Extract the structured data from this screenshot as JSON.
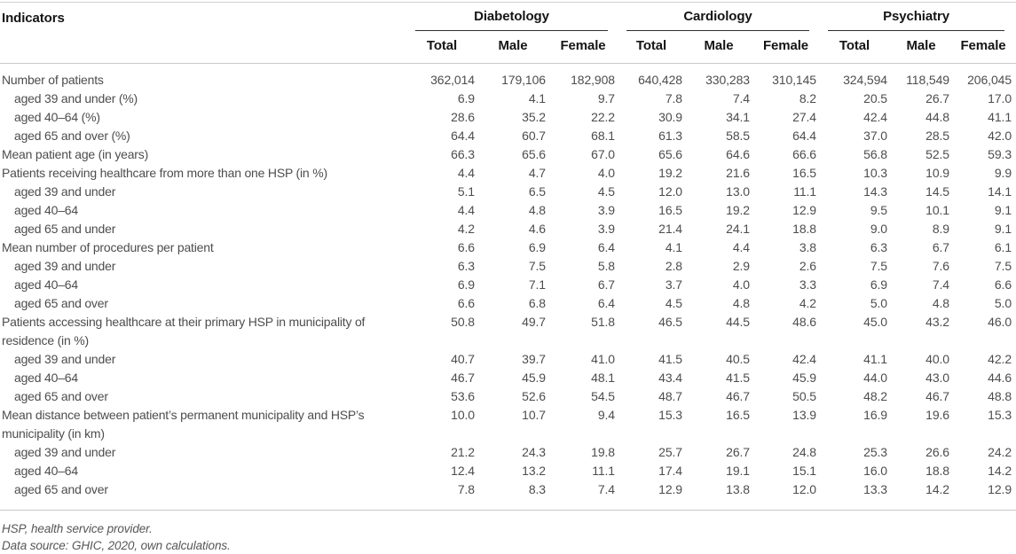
{
  "table": {
    "title_col": "Indicators",
    "groups": [
      {
        "label": "Diabetology",
        "cols": [
          "Total",
          "Male",
          "Female"
        ]
      },
      {
        "label": "Cardiology",
        "cols": [
          "Total",
          "Male",
          "Female"
        ]
      },
      {
        "label": "Psychiatry",
        "cols": [
          "Total",
          "Male",
          "Female"
        ]
      }
    ],
    "rows": [
      {
        "label": "Number of patients",
        "indent": false,
        "values": [
          "362,014",
          "179,106",
          "182,908",
          "640,428",
          "330,283",
          "310,145",
          "324,594",
          "118,549",
          "206,045"
        ]
      },
      {
        "label": "aged 39 and under (%)",
        "indent": true,
        "values": [
          "6.9",
          "4.1",
          "9.7",
          "7.8",
          "7.4",
          "8.2",
          "20.5",
          "26.7",
          "17.0"
        ]
      },
      {
        "label": "aged 40–64 (%)",
        "indent": true,
        "values": [
          "28.6",
          "35.2",
          "22.2",
          "30.9",
          "34.1",
          "27.4",
          "42.4",
          "44.8",
          "41.1"
        ]
      },
      {
        "label": "aged 65 and over (%)",
        "indent": true,
        "values": [
          "64.4",
          "60.7",
          "68.1",
          "61.3",
          "58.5",
          "64.4",
          "37.0",
          "28.5",
          "42.0"
        ]
      },
      {
        "label": "Mean patient age (in years)",
        "indent": false,
        "values": [
          "66.3",
          "65.6",
          "67.0",
          "65.6",
          "64.6",
          "66.6",
          "56.8",
          "52.5",
          "59.3"
        ]
      },
      {
        "label": "Patients receiving healthcare from more than one HSP (in %)",
        "indent": false,
        "values": [
          "4.4",
          "4.7",
          "4.0",
          "19.2",
          "21.6",
          "16.5",
          "10.3",
          "10.9",
          "9.9"
        ]
      },
      {
        "label": "aged 39 and under",
        "indent": true,
        "values": [
          "5.1",
          "6.5",
          "4.5",
          "12.0",
          "13.0",
          "11.1",
          "14.3",
          "14.5",
          "14.1"
        ]
      },
      {
        "label": "aged 40–64",
        "indent": true,
        "values": [
          "4.4",
          "4.8",
          "3.9",
          "16.5",
          "19.2",
          "12.9",
          "9.5",
          "10.1",
          "9.1"
        ]
      },
      {
        "label": "aged 65 and under",
        "indent": true,
        "values": [
          "4.2",
          "4.6",
          "3.9",
          "21.4",
          "24.1",
          "18.8",
          "9.0",
          "8.9",
          "9.1"
        ]
      },
      {
        "label": "Mean number of procedures per patient",
        "indent": false,
        "values": [
          "6.6",
          "6.9",
          "6.4",
          "4.1",
          "4.4",
          "3.8",
          "6.3",
          "6.7",
          "6.1"
        ]
      },
      {
        "label": "aged 39 and under",
        "indent": true,
        "values": [
          "6.3",
          "7.5",
          "5.8",
          "2.8",
          "2.9",
          "2.6",
          "7.5",
          "7.6",
          "7.5"
        ]
      },
      {
        "label": "aged 40–64",
        "indent": true,
        "values": [
          "6.9",
          "7.1",
          "6.7",
          "3.7",
          "4.0",
          "3.3",
          "6.9",
          "7.4",
          "6.6"
        ]
      },
      {
        "label": "aged 65 and over",
        "indent": true,
        "values": [
          "6.6",
          "6.8",
          "6.4",
          "4.5",
          "4.8",
          "4.2",
          "5.0",
          "4.8",
          "5.0"
        ]
      },
      {
        "label": "Patients accessing healthcare at their primary HSP in municipality of residence (in %)",
        "indent": false,
        "values": [
          "50.8",
          "49.7",
          "51.8",
          "46.5",
          "44.5",
          "48.6",
          "45.0",
          "43.2",
          "46.0"
        ]
      },
      {
        "label": "aged 39 and under",
        "indent": true,
        "values": [
          "40.7",
          "39.7",
          "41.0",
          "41.5",
          "40.5",
          "42.4",
          "41.1",
          "40.0",
          "42.2"
        ]
      },
      {
        "label": "aged 40–64",
        "indent": true,
        "values": [
          "46.7",
          "45.9",
          "48.1",
          "43.4",
          "41.5",
          "45.9",
          "44.0",
          "43.0",
          "44.6"
        ]
      },
      {
        "label": "aged 65 and over",
        "indent": true,
        "values": [
          "53.6",
          "52.6",
          "54.5",
          "48.7",
          "46.7",
          "50.5",
          "48.2",
          "46.7",
          "48.8"
        ]
      },
      {
        "label": "Mean distance between patient’s permanent municipality and HSP’s municipality (in km)",
        "indent": false,
        "values": [
          "10.0",
          "10.7",
          "9.4",
          "15.3",
          "16.5",
          "13.9",
          "16.9",
          "19.6",
          "15.3"
        ]
      },
      {
        "label": "aged 39 and under",
        "indent": true,
        "values": [
          "21.2",
          "24.3",
          "19.8",
          "25.7",
          "26.7",
          "24.8",
          "25.3",
          "26.6",
          "24.2"
        ]
      },
      {
        "label": "aged 40–64",
        "indent": true,
        "values": [
          "12.4",
          "13.2",
          "11.1",
          "17.4",
          "19.1",
          "15.1",
          "16.0",
          "18.8",
          "14.2"
        ]
      },
      {
        "label": "aged 65 and over",
        "indent": true,
        "values": [
          "7.8",
          "8.3",
          "7.4",
          "12.9",
          "13.8",
          "12.0",
          "13.3",
          "14.2",
          "12.9"
        ]
      }
    ],
    "footnotes": [
      "HSP, health service provider.",
      "Data source: GHIC, 2020, own calculations."
    ]
  }
}
